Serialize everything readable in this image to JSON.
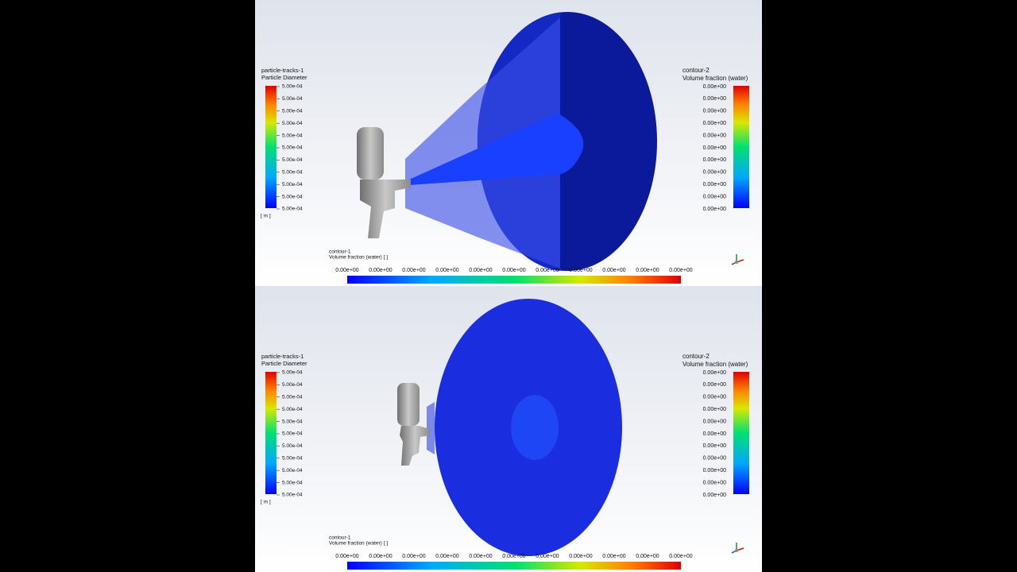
{
  "panels": [
    {
      "left_legend": {
        "title": "particle-tracks-1",
        "subtitle": "Particle Diameter",
        "labels": [
          "5.00e-04",
          "5.00e-04",
          "5.00e-04",
          "5.00e-04",
          "5.00e-04",
          "5.00e-04",
          "5.00e-04",
          "5.00e-04",
          "5.00e-04",
          "5.00e-04",
          "5.00e-04"
        ],
        "unit": "[ m ]"
      },
      "right_legend": {
        "title": "contour-2",
        "subtitle": "Volume fraction (water)",
        "labels": [
          "0.00e+00",
          "0.00e+00",
          "0.00e+00",
          "0.00e+00",
          "0.00e+00",
          "0.00e+00",
          "0.00e+00",
          "0.00e+00",
          "0.00e+00",
          "0.00e+00",
          "0.00e+00"
        ]
      },
      "bottom_legend": {
        "title": "contour-1",
        "subtitle": "Volume fraction (water)  [ ]",
        "labels": [
          "0.00e+00",
          "0.00e+00",
          "0.00e+00",
          "0.00e+00",
          "0.00e+00",
          "0.00e+00",
          "0.00e+00",
          "0.00e+00",
          "0.00e+00",
          "0.00e+00",
          "0.00e+00"
        ]
      }
    },
    {
      "left_legend": {
        "title": "particle-tracks-1",
        "subtitle": "Particle Diameter",
        "labels": [
          "5.00e-04",
          "5.00e-04",
          "5.00e-04",
          "5.00e-04",
          "5.00e-04",
          "5.00e-04",
          "5.00e-04",
          "5.00e-04",
          "5.00e-04",
          "5.00e-04",
          "5.00e-04"
        ],
        "unit": "[ m ]"
      },
      "right_legend": {
        "title": "contour-2",
        "subtitle": "Volume fraction (water)",
        "labels": [
          "0.00e+00",
          "0.00e+00",
          "0.00e+00",
          "0.00e+00",
          "0.00e+00",
          "0.00e+00",
          "0.00e+00",
          "0.00e+00",
          "0.00e+00",
          "0.00e+00",
          "0.00e+00"
        ]
      },
      "bottom_legend": {
        "title": "contour-1",
        "subtitle": "Volume fraction (water)  [ ]",
        "labels": [
          "0.00e+00",
          "0.00e+00",
          "0.00e+00",
          "0.00e+00",
          "0.00e+00",
          "0.00e+00",
          "0.00e+00",
          "0.00e+00",
          "0.00e+00",
          "0.00e+00",
          "0.00e+00"
        ]
      }
    }
  ]
}
